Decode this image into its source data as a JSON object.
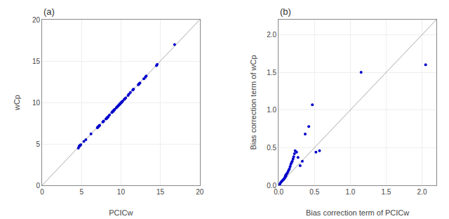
{
  "chart_data": [
    {
      "type": "scatter",
      "title": "(a)",
      "x_label": "PCICw",
      "y_label": "wCp",
      "xlim": [
        0,
        20
      ],
      "ylim": [
        0,
        20
      ],
      "xticks": [
        0,
        5,
        10,
        15,
        20
      ],
      "yticks": [
        0,
        5,
        10,
        15,
        20
      ],
      "grid": true,
      "series": [
        {
          "type": "line",
          "color": "#aaaaaa",
          "x": [
            0,
            20
          ],
          "values": [
            0,
            20
          ]
        },
        {
          "type": "scatter",
          "color": "#0000cc",
          "x": [
            4.6,
            4.7,
            4.75,
            4.8,
            4.85,
            4.9,
            5.3,
            5.55,
            6.2,
            7.0,
            7.05,
            7.1,
            7.15,
            7.2,
            7.25,
            7.3,
            7.7,
            7.75,
            7.8,
            8.1,
            8.15,
            8.2,
            8.25,
            8.3,
            8.35,
            8.4,
            8.55,
            8.85,
            8.9,
            8.95,
            9.0,
            9.05,
            9.1,
            9.15,
            9.2,
            9.4,
            9.5,
            9.55,
            9.6,
            9.7,
            9.75,
            9.8,
            9.85,
            9.9,
            9.95,
            10.0,
            10.05,
            10.1,
            10.15,
            10.2,
            10.4,
            10.5,
            10.6,
            10.9,
            11.0,
            11.2,
            11.5,
            11.6,
            12.2,
            12.25,
            12.3,
            12.4,
            12.9,
            13.1,
            13.2,
            14.5,
            14.6,
            16.8
          ],
          "values": [
            4.5,
            4.7,
            4.75,
            4.8,
            4.85,
            4.9,
            5.3,
            5.5,
            6.2,
            6.95,
            7.0,
            7.05,
            7.1,
            7.15,
            7.2,
            7.25,
            7.65,
            7.7,
            7.75,
            8.0,
            8.05,
            8.1,
            8.15,
            8.2,
            8.25,
            8.3,
            8.5,
            8.8,
            8.85,
            8.9,
            8.95,
            9.0,
            9.05,
            9.1,
            9.15,
            9.35,
            9.45,
            9.5,
            9.55,
            9.65,
            9.7,
            9.75,
            9.8,
            9.85,
            9.9,
            9.95,
            10.0,
            10.05,
            10.1,
            10.15,
            10.35,
            10.45,
            10.55,
            10.85,
            11.0,
            11.2,
            11.5,
            11.6,
            12.15,
            12.2,
            12.25,
            12.35,
            12.85,
            13.05,
            13.2,
            14.45,
            14.6,
            17.0
          ]
        }
      ]
    },
    {
      "type": "scatter",
      "title": "(b)",
      "x_label": "Bias correction term of PCICw",
      "y_label": "Bias correction term of wCp",
      "xlim": [
        0,
        2.2
      ],
      "ylim": [
        0,
        2.2
      ],
      "xticks": [
        {
          "value": 0,
          "label": "0.0"
        },
        0.5,
        {
          "value": 1,
          "label": "1.0"
        },
        1.5,
        {
          "value": 2,
          "label": "2.0"
        }
      ],
      "yticks": [
        {
          "value": 0,
          "label": "0.0"
        },
        0.5,
        {
          "value": 1,
          "label": "1.0"
        },
        1.5,
        {
          "value": 2,
          "label": "2.0"
        }
      ],
      "grid": true,
      "series": [
        {
          "type": "line",
          "color": "#aaaaaa",
          "x": [
            0,
            2.2
          ],
          "values": [
            0,
            2.2
          ]
        },
        {
          "type": "scatter",
          "color": "#0000cc",
          "x": [
            0.0,
            0.01,
            0.02,
            0.03,
            0.04,
            0.05,
            0.06,
            0.07,
            0.08,
            0.085,
            0.09,
            0.095,
            0.1,
            0.105,
            0.11,
            0.12,
            0.13,
            0.14,
            0.15,
            0.16,
            0.17,
            0.18,
            0.19,
            0.2,
            0.21,
            0.22,
            0.23,
            0.25,
            0.27,
            0.3,
            0.33,
            0.37,
            0.42,
            0.47,
            0.52,
            0.57,
            1.15,
            2.05
          ],
          "values": [
            0.0,
            0.01,
            0.02,
            0.04,
            0.05,
            0.06,
            0.07,
            0.08,
            0.09,
            0.1,
            0.11,
            0.13,
            0.12,
            0.14,
            0.15,
            0.16,
            0.18,
            0.2,
            0.22,
            0.25,
            0.28,
            0.3,
            0.32,
            0.35,
            0.38,
            0.42,
            0.46,
            0.44,
            0.37,
            0.26,
            0.32,
            0.68,
            0.78,
            1.07,
            0.44,
            0.46,
            1.5,
            1.6
          ]
        }
      ]
    }
  ]
}
